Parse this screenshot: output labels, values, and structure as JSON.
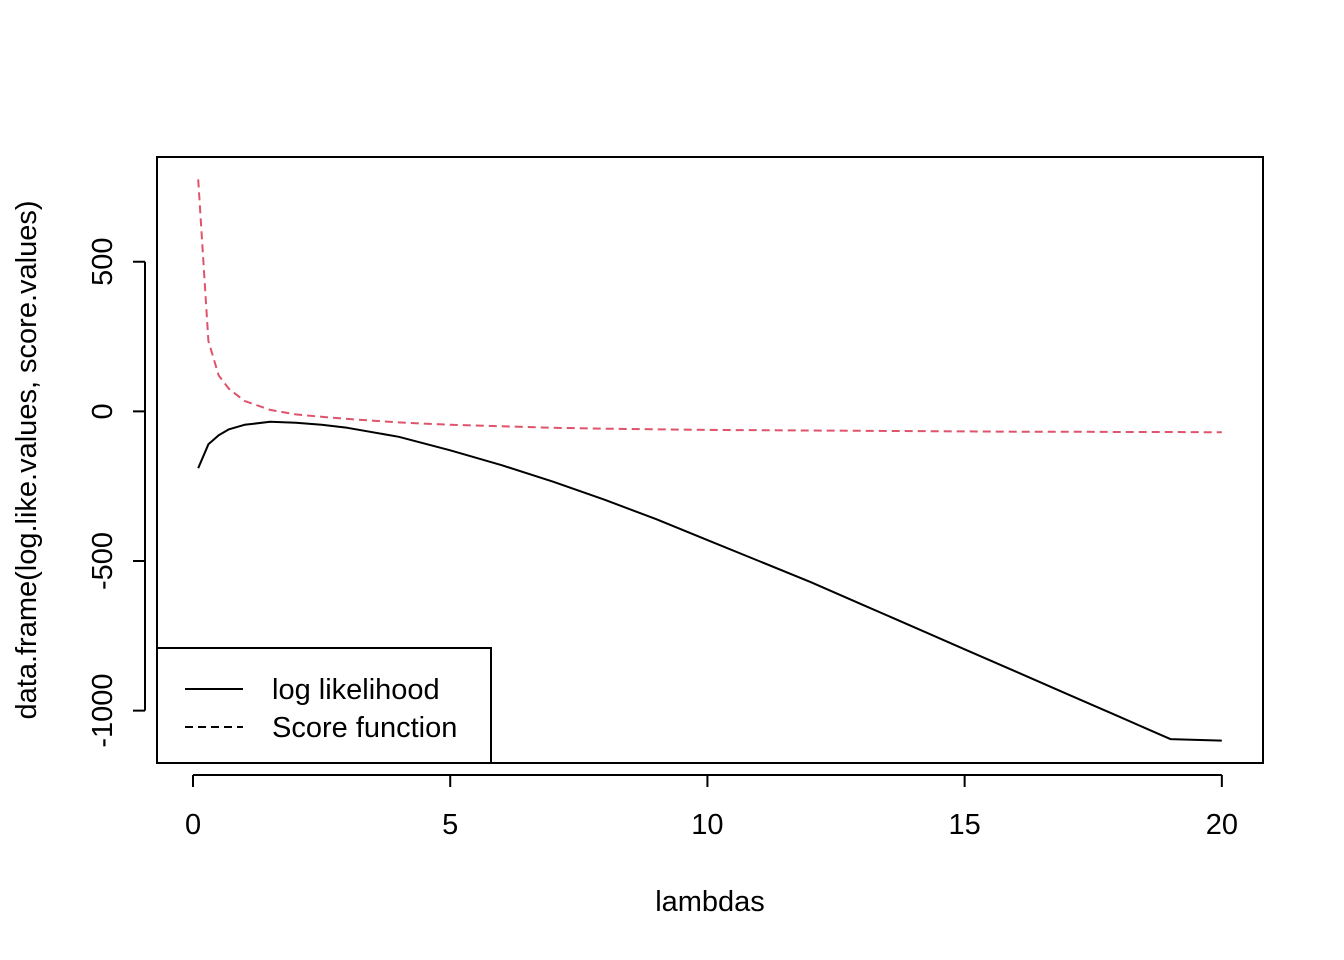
{
  "chart_data": {
    "type": "line",
    "title": "",
    "xlabel": "lambdas",
    "ylabel": "data.frame(log.like.values, score.values)",
    "xlim": [
      -0.7,
      20.8
    ],
    "ylim": [
      -1175,
      850
    ],
    "x_ticks": [
      0,
      5,
      10,
      15,
      20
    ],
    "x_tick_labels": [
      "0",
      "5",
      "10",
      "15",
      "20"
    ],
    "y_ticks": [
      -1000,
      -500,
      0,
      500
    ],
    "y_tick_labels": [
      "-1000",
      "-500",
      "0",
      "500"
    ],
    "grid": false,
    "legend_position": "bottom-left",
    "series": [
      {
        "name": "log likelihood",
        "color": "#000000",
        "dash": "solid",
        "x": [
          0.1,
          0.3,
          0.5,
          0.7,
          1.0,
          1.5,
          2.0,
          2.5,
          3.0,
          4.0,
          5.0,
          6.0,
          7.0,
          8.0,
          9.0,
          10.0,
          11.0,
          12.0,
          13.0,
          14.0,
          15.0,
          16.0,
          17.0,
          18.0,
          19.0,
          20.0
        ],
        "y": [
          -190,
          -110,
          -80,
          -60,
          -45,
          -35,
          -38,
          -45,
          -55,
          -85,
          -130,
          -180,
          -235,
          -295,
          -360,
          -430,
          -500,
          -570,
          -645,
          -720,
          -795,
          -870,
          -945,
          -1020,
          -1095,
          -1100
        ]
      },
      {
        "name": "Score function",
        "color": "#DF536B",
        "dash": "dashed",
        "x": [
          0.1,
          0.3,
          0.5,
          0.7,
          1.0,
          1.5,
          2.0,
          2.5,
          3.0,
          4.0,
          5.0,
          6.0,
          7.0,
          8.0,
          9.0,
          10.0,
          11.0,
          12.0,
          13.0,
          14.0,
          15.0,
          16.0,
          17.0,
          18.0,
          19.0,
          20.0
        ],
        "y": [
          775,
          235,
          120,
          75,
          35,
          5,
          -10,
          -18,
          -25,
          -37,
          -45,
          -50,
          -55,
          -58,
          -60,
          -62,
          -63,
          -64,
          -65,
          -66,
          -67,
          -68,
          -68,
          -69,
          -69,
          -70
        ]
      }
    ]
  }
}
